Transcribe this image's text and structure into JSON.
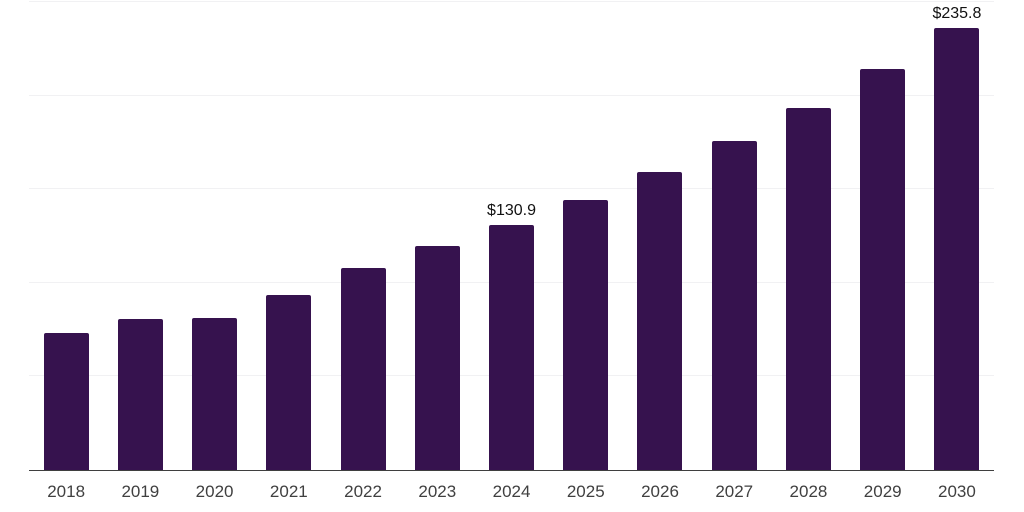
{
  "chart_data": {
    "type": "bar",
    "title": "",
    "xlabel": "",
    "ylabel": "",
    "categories": [
      "2018",
      "2019",
      "2020",
      "2021",
      "2022",
      "2023",
      "2024",
      "2025",
      "2026",
      "2027",
      "2028",
      "2029",
      "2030"
    ],
    "values": [
      73.3,
      80.6,
      81.3,
      93.7,
      107.9,
      119.5,
      130.9,
      144.2,
      159.2,
      175.7,
      193.5,
      213.9,
      235.8
    ],
    "data_labels": [
      {
        "category": "2024",
        "text": "$130.9"
      },
      {
        "category": "2030",
        "text": "$235.8"
      }
    ],
    "ylim": [
      0,
      251
    ],
    "gridline_values": [
      50,
      100,
      150,
      200,
      250
    ],
    "grid": "on",
    "legend": "none",
    "colors": {
      "bar": "#36124e",
      "gridline": "#f1f1f3",
      "axis_line": "#3f3f3f",
      "tick_label": "#404040",
      "data_label": "#111111",
      "background": "#ffffff"
    }
  }
}
